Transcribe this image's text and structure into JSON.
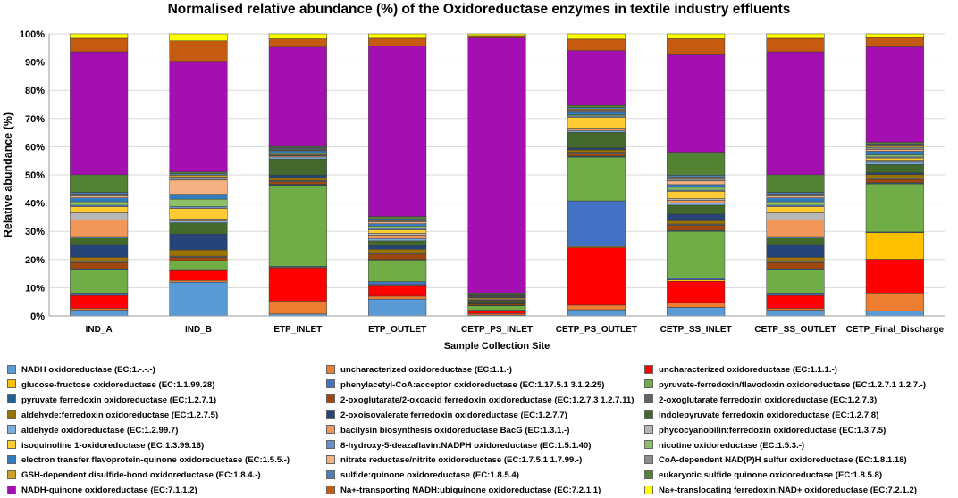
{
  "chart_data": {
    "type": "bar",
    "stacked": true,
    "title": "Normalised relative abundance (%) of the Oxidoreductase enzymes in textile industry effluents",
    "xlabel": "Sample Collection Site",
    "ylabel": "Relative abundance (%)",
    "ylim": [
      0,
      100
    ],
    "yticks": [
      "0%",
      "10%",
      "20%",
      "30%",
      "40%",
      "50%",
      "60%",
      "70%",
      "80%",
      "90%",
      "100%"
    ],
    "categories": [
      "IND_A",
      "IND_B",
      "ETP_INLET",
      "ETP_OUTLET",
      "CETP_PS_INLET",
      "CETP_PS_OUTLET",
      "CETP_SS_INLET",
      "CETP_SS_OUTLET",
      "CETP_Final_Discharge"
    ],
    "series": [
      {
        "name": "NADH oxidoreductase (EC:1.-.-.-)",
        "color": "#5b9bd5",
        "values": [
          2.0,
          11.7,
          0.6,
          5.8,
          0.3,
          1.9,
          2.8,
          2.0,
          1.4
        ]
      },
      {
        "name": "uncharacterized oxidoreductase (EC:1.1.-)",
        "color": "#ed7d31",
        "values": [
          0.6,
          0.6,
          3.9,
          1.0,
          0.5,
          1.4,
          1.6,
          0.6,
          5.0
        ]
      },
      {
        "name": "uncharacterized oxidoreductase (EC:1.1.1.-)",
        "color": "#ff0000",
        "values": [
          4.4,
          3.4,
          10.1,
          3.8,
          0.9,
          17.6,
          7.0,
          4.4,
          9.4
        ]
      },
      {
        "name": "glucose-fructose oxidoreductase (EC:1.1.99.28)",
        "color": "#ffc000",
        "values": [
          0.3,
          0.2,
          0.2,
          0.2,
          0.1,
          0.3,
          0.5,
          0.3,
          7.4
        ]
      },
      {
        "name": "phenylacetyl-CoA:acceptor oxidoreductase (EC:1.17.5.1 3.1.2.25)",
        "color": "#4472c4",
        "values": [
          0.5,
          0.2,
          0.3,
          1.0,
          0.2,
          14.0,
          0.5,
          0.5,
          0.2
        ]
      },
      {
        "name": "pyruvate-ferredoxin/flavodoxin oxidoreductase (EC:1.2.7.1 1.2.7.-)",
        "color": "#70ad47",
        "values": [
          7.9,
          2.9,
          24.6,
          7.5,
          1.5,
          13.4,
          15.5,
          7.9,
          13.4
        ]
      },
      {
        "name": "pyruvate ferredoxin oxidoreductase (EC:1.2.7.1)",
        "color": "#255e91",
        "values": [
          0.4,
          0.2,
          0.3,
          0.2,
          0.2,
          0.3,
          0.3,
          0.4,
          0.3
        ]
      },
      {
        "name": "2-oxoglutarate/2-oxoacid ferredoxin oxidoreductase (EC:1.2.7.3 1.2.7.11)",
        "color": "#9e480e",
        "values": [
          2.1,
          1.0,
          0.8,
          1.8,
          0.4,
          0.8,
          1.6,
          2.1,
          0.9
        ]
      },
      {
        "name": "2-oxoglutarate ferredoxin oxidoreductase (EC:1.2.7.3)",
        "color": "#636363",
        "values": [
          0.6,
          0.5,
          0.4,
          0.5,
          0.2,
          0.4,
          0.5,
          0.6,
          0.4
        ]
      },
      {
        "name": "aldehyde:ferredoxin oxidoreductase (EC:1.2.7.5)",
        "color": "#997300",
        "values": [
          1.2,
          2.2,
          0.8,
          1.2,
          0.3,
          0.7,
          1.1,
          1.2,
          1.0
        ]
      },
      {
        "name": "2-oxoisovalerate ferredoxin oxidoreductase (EC:1.2.7.7)",
        "color": "#264478",
        "values": [
          4.4,
          5.5,
          0.8,
          1.3,
          0.2,
          0.6,
          2.2,
          4.4,
          0.5
        ]
      },
      {
        "name": "indolepyruvate ferredoxin oxidoreductase (EC:1.2.7.8)",
        "color": "#43682b",
        "values": [
          2.2,
          3.9,
          4.9,
          1.6,
          0.5,
          4.8,
          2.9,
          2.2,
          2.3
        ]
      },
      {
        "name": "aldehyde oxidoreductase (EC:1.2.99.7)",
        "color": "#7cafdd",
        "values": [
          0.5,
          0.6,
          0.6,
          0.8,
          0.2,
          0.5,
          0.8,
          0.5,
          0.6
        ]
      },
      {
        "name": "bacilysin biosynthesis oxidoreductase BacG (EC:1.3.1.-)",
        "color": "#f1975a",
        "values": [
          5.7,
          0.3,
          0.3,
          1.2,
          0.3,
          0.5,
          0.8,
          5.7,
          0.3
        ]
      },
      {
        "name": "phycocyanobilin:ferredoxin oxidoreductase (EC:1.3.7.5)",
        "color": "#b7b7b7",
        "values": [
          2.4,
          0.4,
          0.2,
          0.6,
          0.2,
          0.3,
          0.6,
          2.4,
          0.3
        ]
      },
      {
        "name": "isoquinoline 1-oxidoreductase (EC:1.3.99.16)",
        "color": "#ffcd33",
        "values": [
          2.1,
          3.7,
          0.2,
          1.2,
          0.3,
          3.3,
          2.4,
          2.1,
          0.6
        ]
      },
      {
        "name": "8-hydroxy-5-deazaflavin:NADPH oxidoreductase (EC:1.5.1.40)",
        "color": "#698ed0",
        "values": [
          0.5,
          0.6,
          0.2,
          0.5,
          0.2,
          0.4,
          0.4,
          0.5,
          0.3
        ]
      },
      {
        "name": "nicotine oxidoreductase (EC:1.5.3.-)",
        "color": "#8cc168",
        "values": [
          1.2,
          2.6,
          0.4,
          0.8,
          0.2,
          0.4,
          0.9,
          1.2,
          0.6
        ]
      },
      {
        "name": "electron transfer flavoprotein-quinone oxidoreductase (EC:1.5.5.-)",
        "color": "#327dc2",
        "values": [
          1.3,
          1.7,
          0.6,
          0.8,
          0.2,
          0.7,
          0.9,
          1.3,
          1.0
        ]
      },
      {
        "name": "nitrate reductase/nitrite oxidoreductase (EC:1.7.5.1 1.7.99.-)",
        "color": "#f4b183",
        "values": [
          0.6,
          4.9,
          0.2,
          0.6,
          0.2,
          0.4,
          1.2,
          0.6,
          0.5
        ]
      },
      {
        "name": "CoA-dependent NAD(P)H sulfur oxidoreductase (EC:1.8.1.18)",
        "color": "#8c8c8c",
        "values": [
          0.4,
          1.1,
          0.2,
          0.4,
          0.2,
          0.3,
          0.8,
          0.4,
          0.6
        ]
      },
      {
        "name": "GSH-dependent disulfide-bond oxidoreductase (EC:1.8.4.-)",
        "color": "#c9a227",
        "values": [
          0.3,
          0.6,
          0.2,
          0.3,
          0.1,
          0.3,
          0.5,
          0.3,
          0.4
        ]
      },
      {
        "name": "sulfide:quinone oxidoreductase (EC:1.8.5.4)",
        "color": "#4a7ebb",
        "values": [
          0.6,
          0.5,
          0.3,
          0.4,
          0.2,
          0.4,
          0.6,
          0.6,
          0.5
        ]
      },
      {
        "name": "eukaryotic sulfide quinone oxidoreductase (EC:1.8.5.8)",
        "color": "#548235",
        "values": [
          6.0,
          0.6,
          0.4,
          0.8,
          0.4,
          0.7,
          7.6,
          6.0,
          0.5
        ]
      },
      {
        "name": "NADH-quinone oxidoreductase (EC:7.1.1.2)",
        "color": "#a30fb0",
        "values": [
          42.0,
          38.4,
          30.2,
          58.8,
          88.8,
          16.8,
          32.1,
          42.0,
          26.6
        ]
      },
      {
        "name": "Na+-transporting NADH:ubiquinone oxidoreductase (EC:7.2.1.1)",
        "color": "#c55a11",
        "values": [
          4.6,
          7.1,
          2.5,
          2.7,
          0.8,
          3.5,
          5.3,
          4.6,
          2.6
        ]
      },
      {
        "name": "Na+-translocating ferredoxin:NAD+ oxidoreductase (EC:7.2.1.2)",
        "color": "#ffff00",
        "values": [
          1.5,
          2.4,
          1.5,
          1.5,
          0.6,
          1.6,
          1.6,
          1.5,
          1.0
        ]
      }
    ]
  }
}
